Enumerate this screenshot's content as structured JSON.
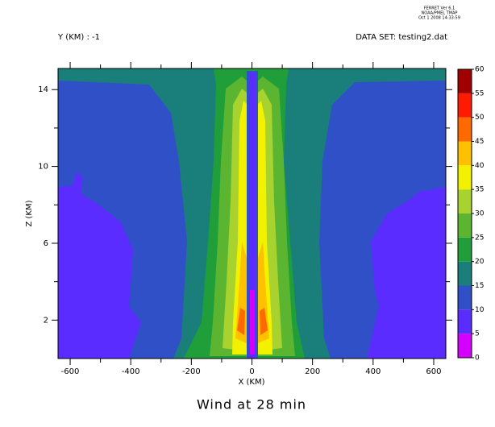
{
  "chart_data": {
    "type": "contour",
    "title": "Wind at 28 min",
    "header": [
      "FERRET Ver 6.1",
      "NOAA/PMEL TMAP",
      "Oct 1 2008 14:33:59"
    ],
    "subtitle_left": "Y (KM) : -1",
    "subtitle_right": "DATA SET: testing2.dat",
    "x_label": "X (KM)",
    "y_label": "Z (KM)",
    "xlim": [
      -640,
      640
    ],
    "xticks": [
      -600,
      -400,
      -200,
      0,
      200,
      400,
      600
    ],
    "xminorticks": [
      -500,
      -300,
      -100,
      100,
      300,
      500
    ],
    "ylim": [
      0,
      15.1
    ],
    "yticks": [
      2,
      6,
      10,
      14
    ],
    "yminorticks": [
      4,
      8,
      12
    ],
    "levels": [
      0,
      5,
      10,
      15,
      20,
      25,
      30,
      35,
      40,
      45,
      50,
      55,
      60
    ],
    "colors": [
      "#d400ff",
      "#5a2cff",
      "#3050c8",
      "#1a7f7a",
      "#1f9e3a",
      "#5cb531",
      "#a8d22e",
      "#f2f200",
      "#ffc000",
      "#ff6a00",
      "#ff1a00",
      "#a00000"
    ]
  }
}
